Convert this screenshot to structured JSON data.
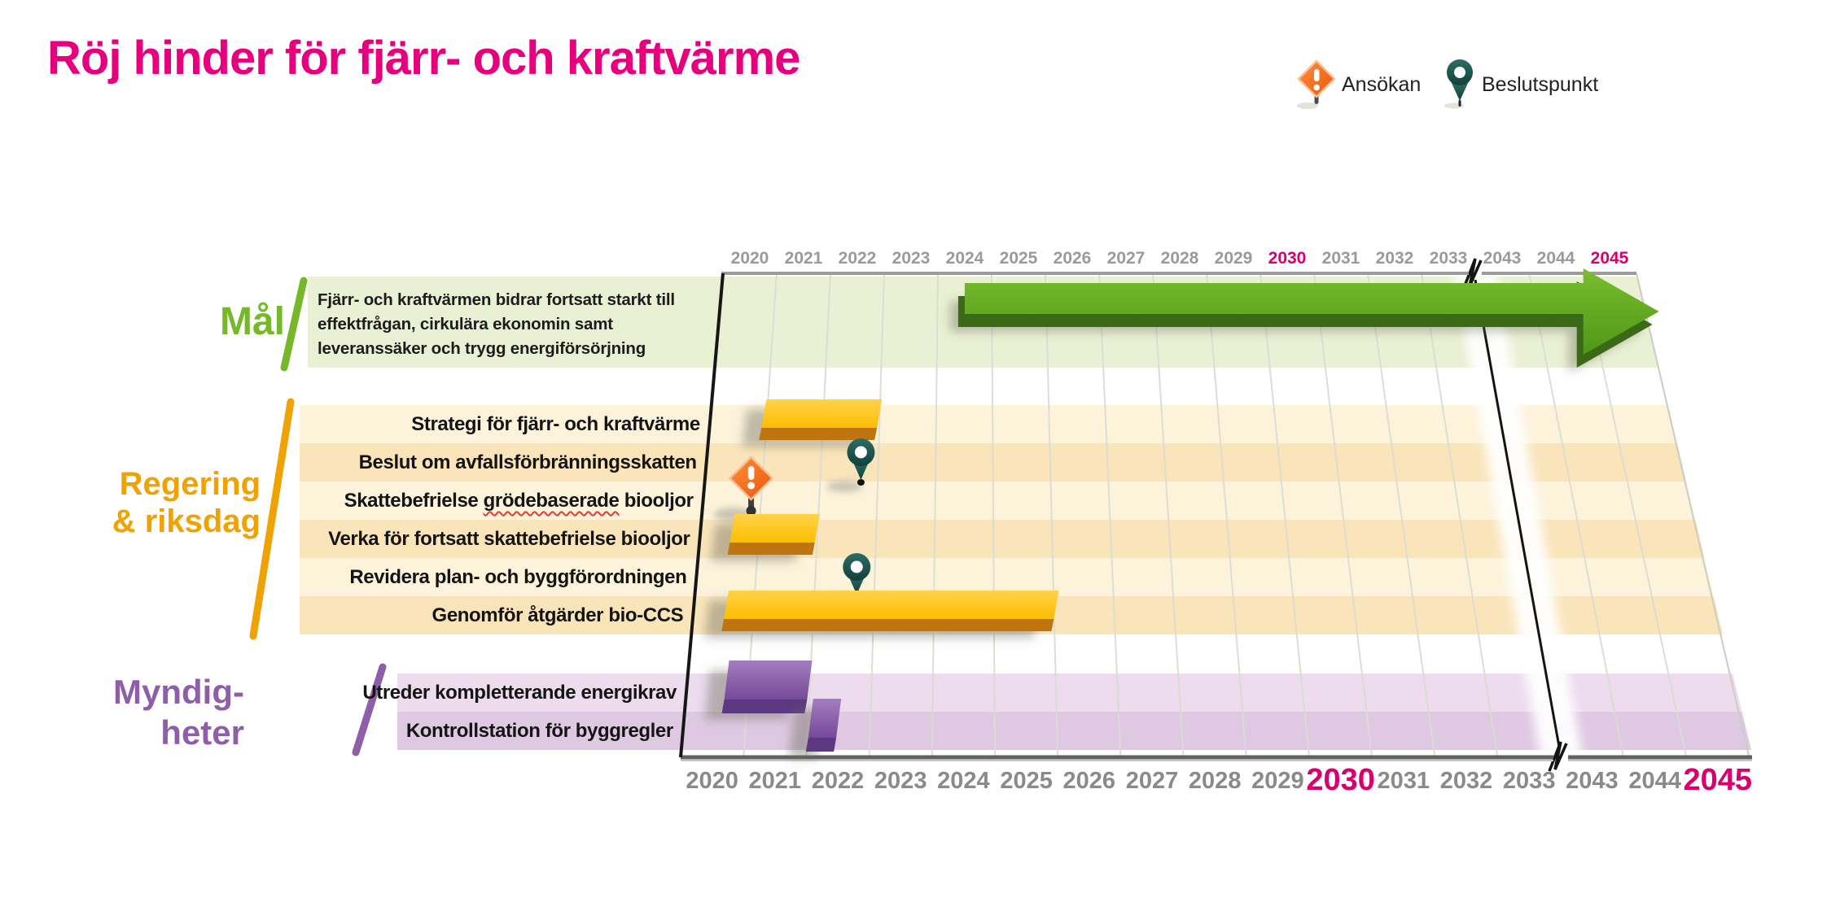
{
  "title": "Röj hinder för fjärr- och kraftvärme",
  "legend": {
    "ansokan_label": "Ansökan",
    "beslutspunkt_label": "Beslutspunkt"
  },
  "colors": {
    "title": "#E6007E",
    "year_highlight": "#D8006E",
    "year_normal": "#8F8F8F",
    "section_mal": "#76B82A",
    "section_regering": "#F0A202",
    "section_myndigheter": "#8E5FA8",
    "bar_yellow": "#FFC000",
    "bar_purple": "#7C52A0",
    "arrow_green": "#5FA81F",
    "pin_teal": "#1E5A54",
    "diamond_orange": "#F26210"
  },
  "chart_data": {
    "type": "gantt-roadmap-timeline",
    "x_axis": {
      "years": [
        "2020",
        "2021",
        "2022",
        "2023",
        "2024",
        "2025",
        "2026",
        "2027",
        "2028",
        "2029",
        "2030",
        "2031",
        "2032",
        "2033",
        "2043",
        "2044",
        "2045"
      ],
      "highlighted_years": [
        "2030",
        "2045"
      ],
      "axis_break_between": [
        "2033",
        "2043"
      ],
      "shown_on": "top and bottom"
    },
    "sections": [
      {
        "id": "mal",
        "label": "Mål",
        "label_lines": [
          "Mål"
        ],
        "rows": [
          {
            "label": "Fjärr- och kraftvärmen bidrar fortsatt starkt till effektfrågan, cirkulära ekonomin samt leveranssäker och trygg energiförsörjning",
            "items": [
              {
                "type": "arrow",
                "from": 2024.5,
                "to": 2045,
                "open_ended": true
              }
            ]
          }
        ]
      },
      {
        "id": "regering",
        "label": "Regering & riksdag",
        "label_lines": [
          "Regering",
          "& riksdag"
        ],
        "rows": [
          {
            "label": "Strategi för fjärr- och kraftvärme",
            "items": [
              {
                "type": "bar",
                "from": 2020.9,
                "to": 2022.95
              }
            ]
          },
          {
            "label": "Beslut om avfallsförbränningsskatten",
            "items": [
              {
                "type": "decision",
                "at": 2022.7
              }
            ]
          },
          {
            "label": "Skattebefrielse grödebaserade biooljor",
            "spellcheck_underline_word": "grödebaserade",
            "items": [
              {
                "type": "application",
                "at": 2020.8
              }
            ]
          },
          {
            "label": "Verka för fortsatt skattebefrielse biooljor",
            "items": [
              {
                "type": "bar",
                "from": 2020.5,
                "to": 2021.95
              }
            ]
          },
          {
            "label": "Revidera plan- och byggförordningen",
            "items": [
              {
                "type": "decision",
                "at": 2022.7
              }
            ]
          },
          {
            "label": "Genomför åtgärder bio-CCS",
            "items": [
              {
                "type": "bar",
                "from": 2020.5,
                "to": 2026.0
              }
            ]
          }
        ]
      },
      {
        "id": "myndigheter",
        "label": "Myndig­heter",
        "label_lines": [
          "Myndig-",
          "heter"
        ],
        "rows": [
          {
            "label": "Utreder kompletterande energikrav",
            "items": [
              {
                "type": "bar",
                "from": 2020.6,
                "to": 2021.95
              }
            ]
          },
          {
            "label": "Kontrollstation för byggregler",
            "items": [
              {
                "type": "bar",
                "from": 2022.0,
                "to": 2022.45
              }
            ]
          }
        ]
      }
    ]
  }
}
